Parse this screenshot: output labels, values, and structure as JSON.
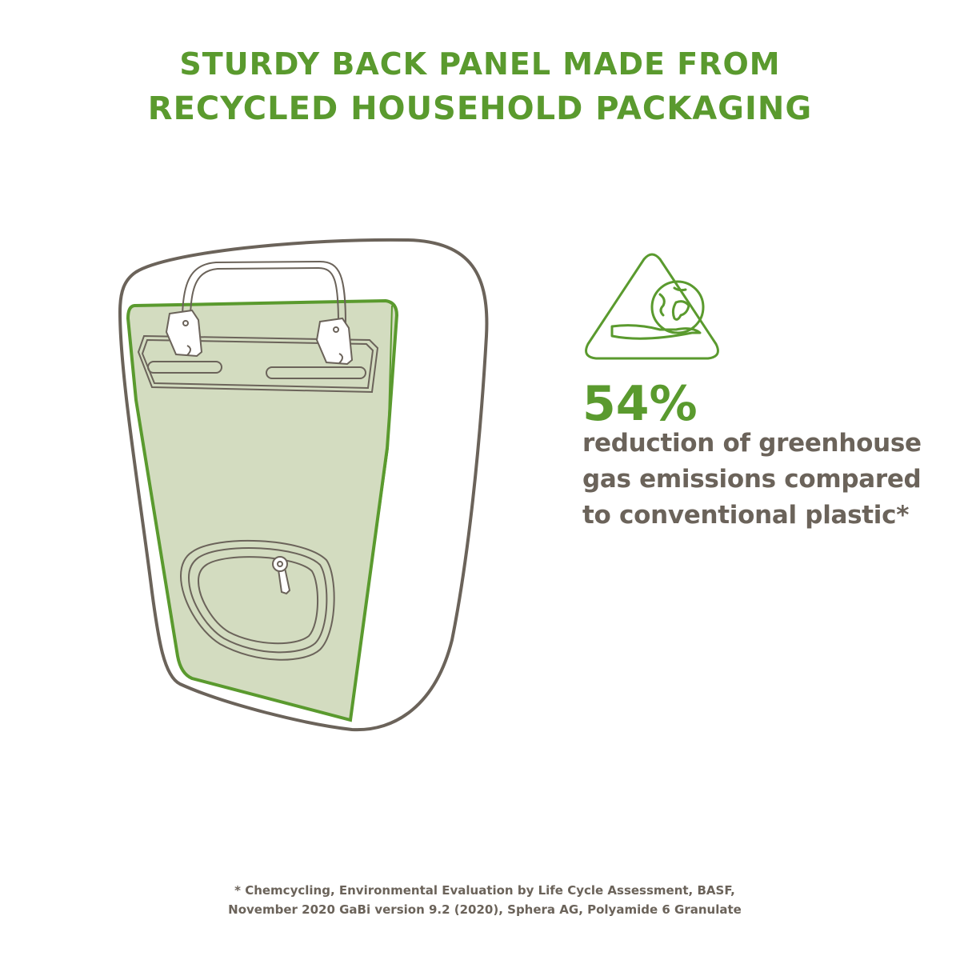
{
  "headline": {
    "line1": "STURDY BACK PANEL MADE FROM",
    "line2": "RECYCLED HOUSEHOLD PACKAGING"
  },
  "stat": {
    "value": "54%",
    "description": [
      "reduction of greenhouse",
      "gas emissions compared",
      "to conventional plastic*"
    ],
    "icon": "hand-holding-globe-triangle-icon"
  },
  "footnote": {
    "line1": "* Chemcycling, Environmental Evaluation by Life Cycle Assessment, BASF,",
    "line2": "November 2020 GaBi version 9.2 (2020), Sphera AG,  Polyamide 6 Granulate"
  },
  "colors": {
    "accent_green": "#5a9a2e",
    "text_gray": "#6b635a",
    "panel_fill": "#d3dcc0",
    "outline": "#6b635a"
  }
}
